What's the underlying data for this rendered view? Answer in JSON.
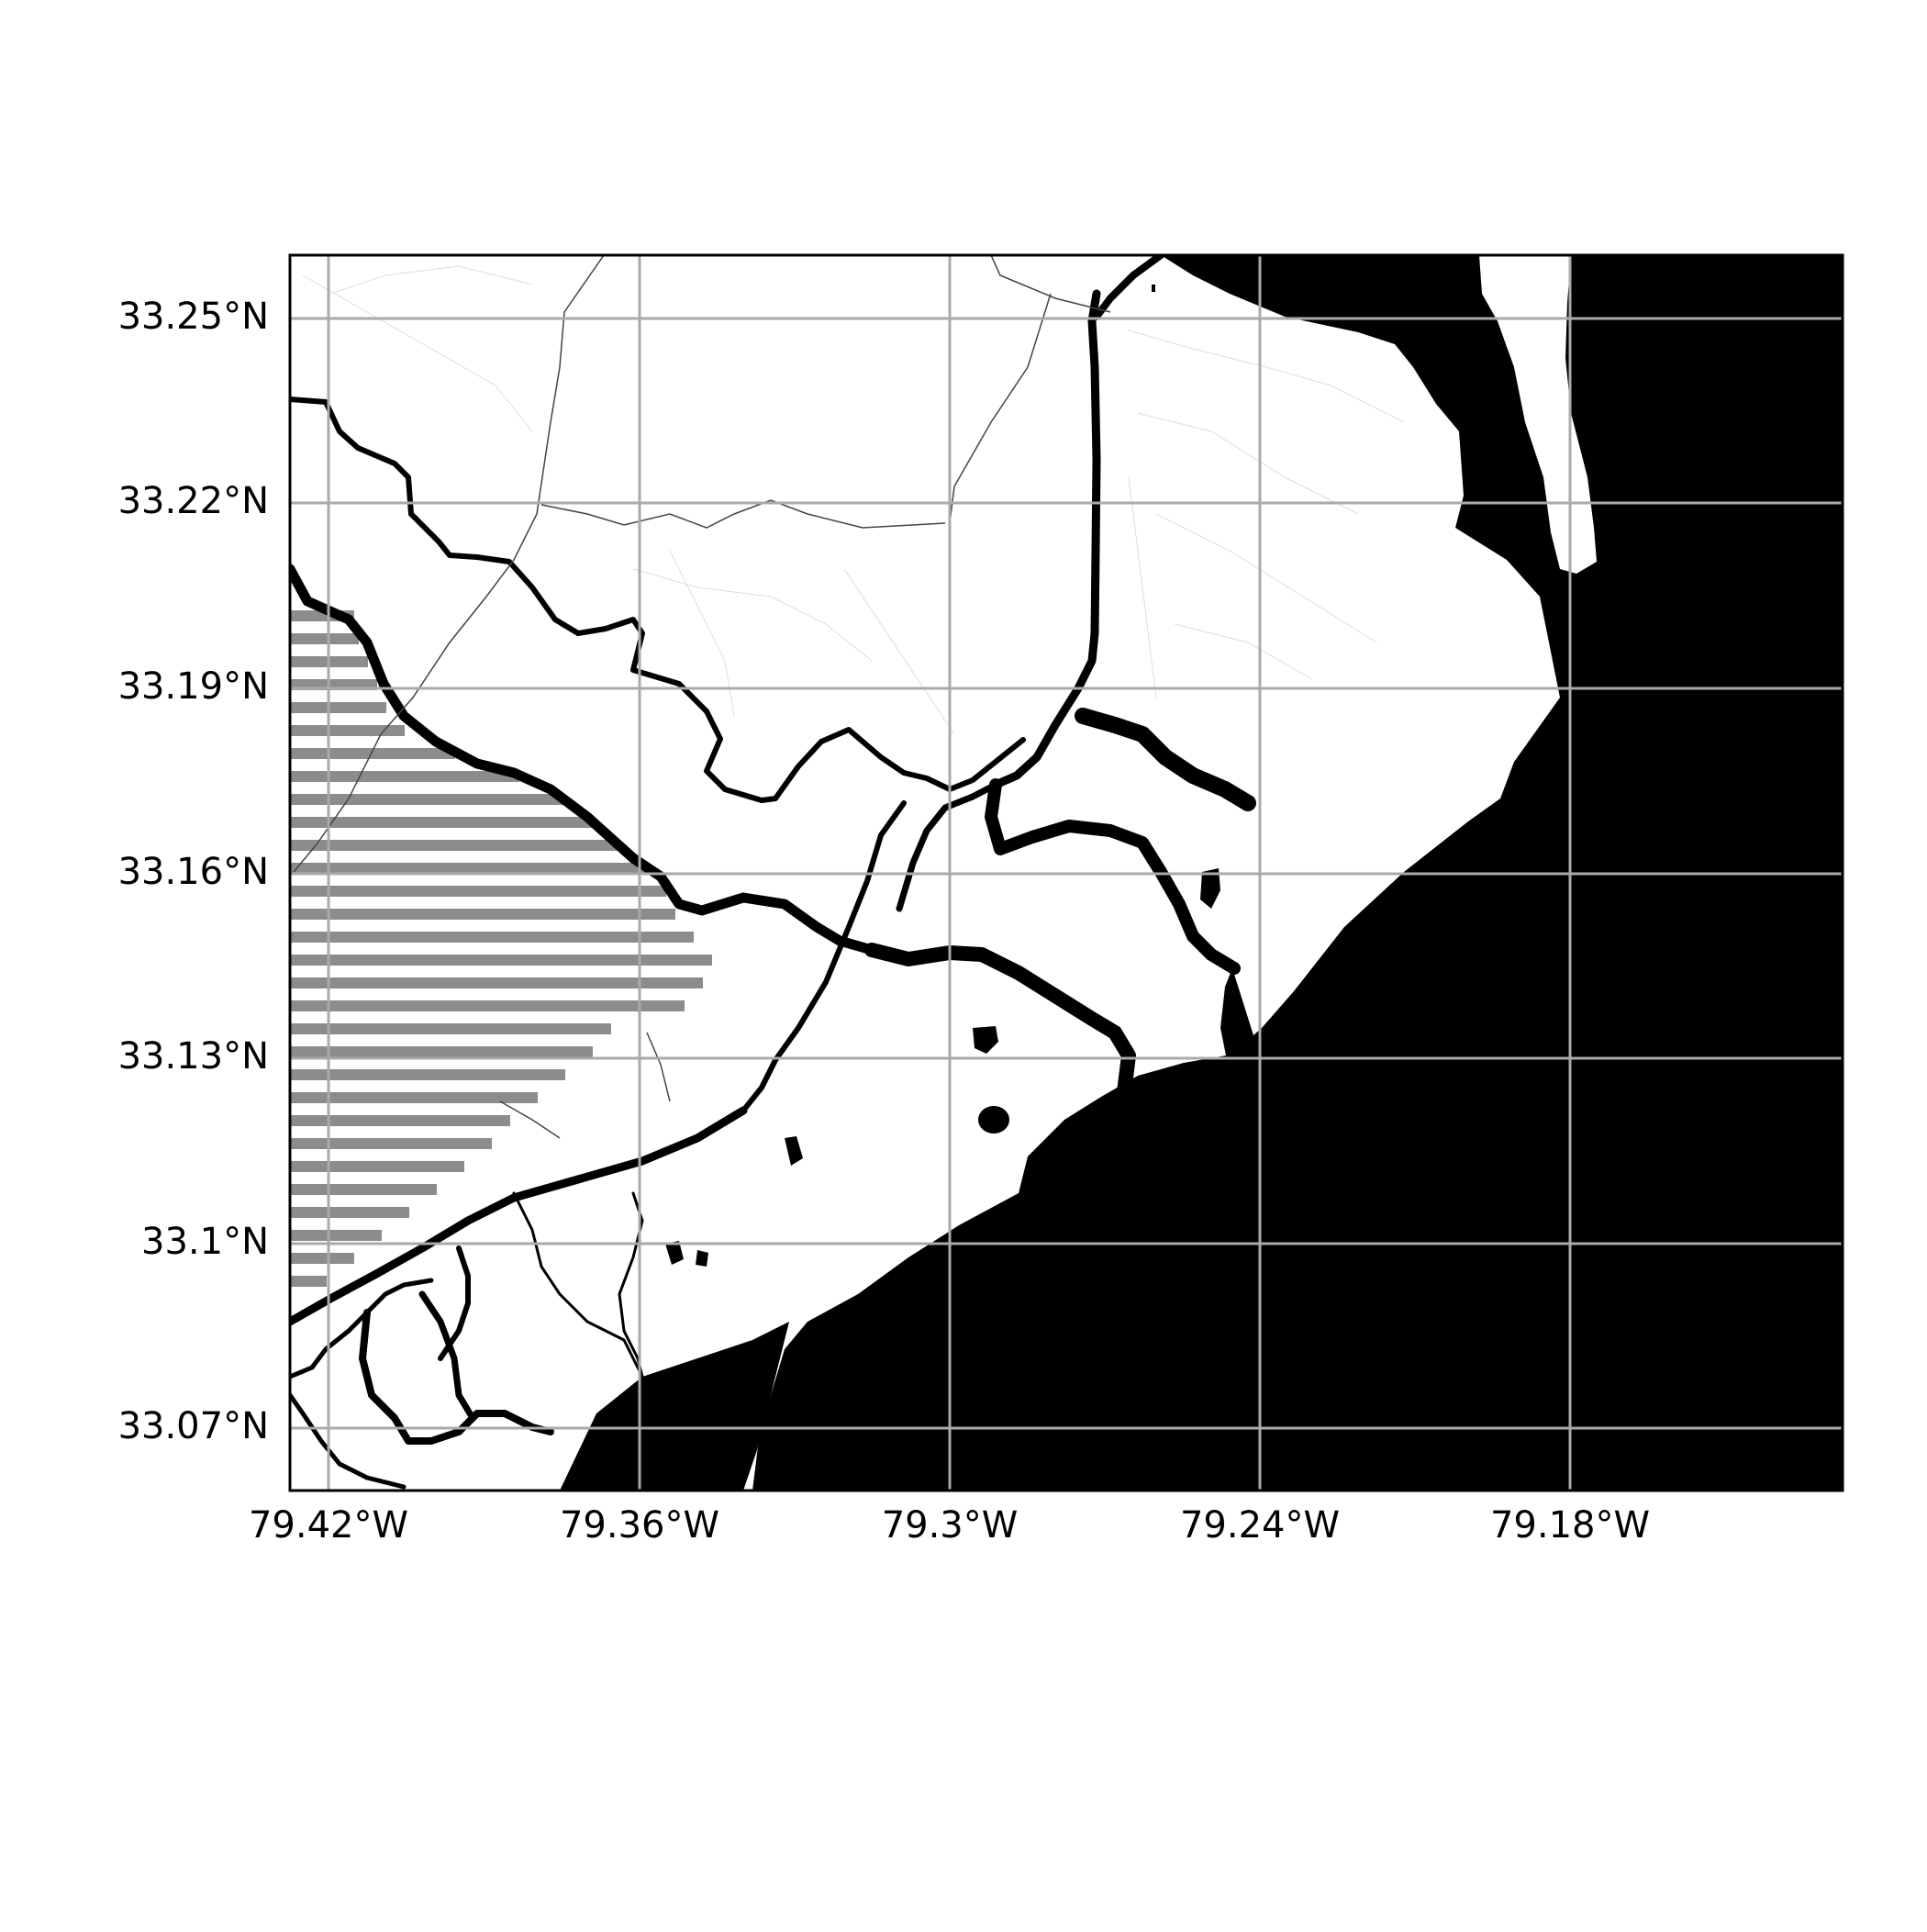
{
  "map": {
    "colors": {
      "water": "#000000",
      "land": "#ffffff",
      "grid": "#aaaaaa",
      "marsh": "#8c8c8c",
      "road": "#444444",
      "frame": "#000000"
    },
    "longitude_ticks": [
      "79.42°W",
      "79.36°W",
      "79.3°W",
      "79.24°W",
      "79.18°W"
    ],
    "latitude_ticks": [
      "33.25°N",
      "33.22°N",
      "33.19°N",
      "33.16°N",
      "33.13°N",
      "33.1°N",
      "33.07°N"
    ],
    "layers": [
      "ocean",
      "land",
      "rivers",
      "marsh-hatching",
      "roads",
      "graticule"
    ]
  }
}
